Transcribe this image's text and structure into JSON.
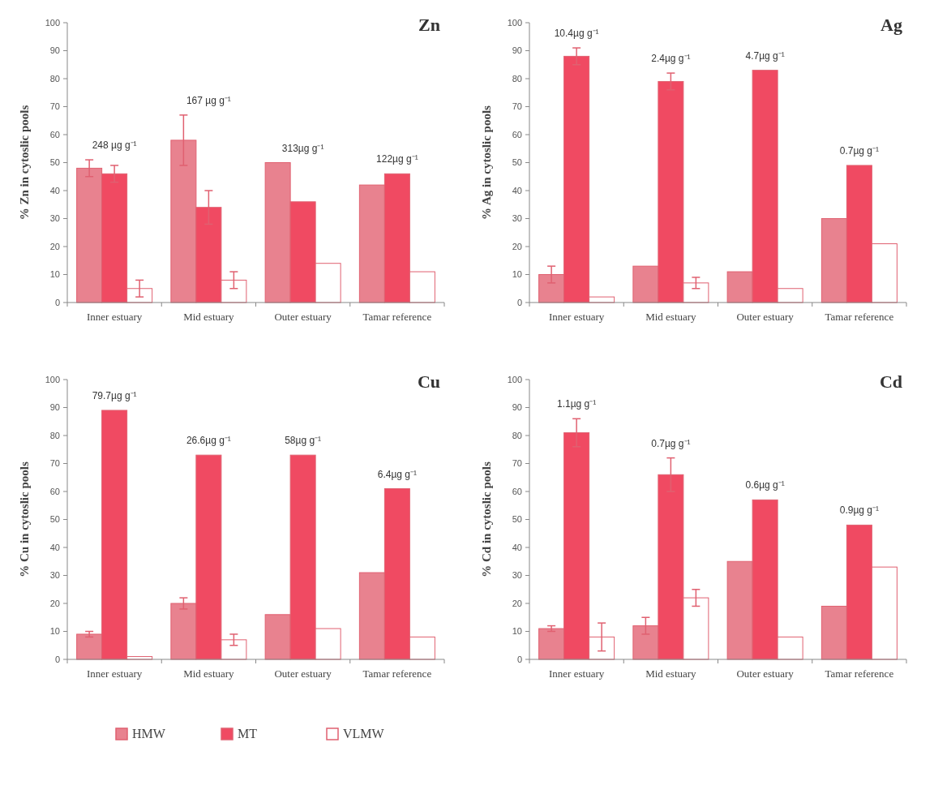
{
  "chart_data": [
    {
      "type": "bar",
      "title": "Zn",
      "ylabel": "% Zn in cytoslic pools",
      "categories": [
        "Inner estuary",
        "Mid estuary",
        "Outer estuary",
        "Tamar reference"
      ],
      "ylim": [
        0,
        100
      ],
      "yticks": [
        0,
        10,
        20,
        30,
        40,
        50,
        60,
        70,
        80,
        90,
        100
      ],
      "legend": false,
      "series": [
        {
          "color": "#e8828f",
          "values": [
            48,
            58,
            50,
            42
          ],
          "errors": [
            3,
            9,
            null,
            null
          ]
        },
        {
          "color": "#f04a62",
          "values": [
            46,
            34,
            36,
            46
          ],
          "errors": [
            3,
            6,
            null,
            null
          ]
        },
        {
          "color": "#ffffff",
          "values": [
            5,
            8,
            14,
            11
          ],
          "errors": [
            3,
            3,
            null,
            null
          ]
        }
      ],
      "annotations": [
        "248 µg g⁻¹",
        "167 µg g⁻¹",
        "313µg g⁻¹",
        "122µg g⁻¹"
      ]
    },
    {
      "type": "bar",
      "title": "Ag",
      "ylabel": "% Ag in cytoslic pools",
      "categories": [
        "Inner estuary",
        "Mid estuary",
        "Outer estuary",
        "Tamar reference"
      ],
      "ylim": [
        0,
        100
      ],
      "yticks": [
        0,
        10,
        20,
        30,
        40,
        50,
        60,
        70,
        80,
        90,
        100
      ],
      "legend": false,
      "series": [
        {
          "color": "#e8828f",
          "values": [
            10,
            13,
            11,
            30
          ],
          "errors": [
            3,
            null,
            null,
            null
          ]
        },
        {
          "color": "#f04a62",
          "values": [
            88,
            79,
            83,
            49
          ],
          "errors": [
            3,
            3,
            null,
            null
          ]
        },
        {
          "color": "#ffffff",
          "values": [
            2,
            7,
            5,
            21
          ],
          "errors": [
            null,
            2,
            null,
            null
          ]
        }
      ],
      "annotations": [
        "10.4µg g⁻¹",
        "2.4µg g⁻¹",
        "4.7µg g⁻¹",
        "0.7µg g⁻¹"
      ]
    },
    {
      "type": "bar",
      "title": "Cu",
      "ylabel": "% Cu in cytoslic pools",
      "categories": [
        "Inner estuary",
        "Mid estuary",
        "Outer estuary",
        "Tamar reference"
      ],
      "ylim": [
        0,
        100
      ],
      "yticks": [
        0,
        10,
        20,
        30,
        40,
        50,
        60,
        70,
        80,
        90,
        100
      ],
      "legend": "bottom",
      "series": [
        {
          "name": "HMW",
          "color": "#e8828f",
          "values": [
            9,
            20,
            16,
            31
          ],
          "errors": [
            1,
            2,
            null,
            null
          ]
        },
        {
          "name": "MT",
          "color": "#f04a62",
          "values": [
            89,
            73,
            73,
            61
          ],
          "errors": [
            null,
            null,
            null,
            null
          ]
        },
        {
          "name": "VLMW",
          "color": "#ffffff",
          "values": [
            1,
            7,
            11,
            8
          ],
          "errors": [
            null,
            2,
            null,
            null
          ]
        }
      ],
      "annotations": [
        "79.7µg g⁻¹",
        "26.6µg g⁻¹",
        "58µg g⁻¹",
        "6.4µg g⁻¹"
      ]
    },
    {
      "type": "bar",
      "title": "Cd",
      "ylabel": "% Cd in cytoslic pools",
      "categories": [
        "Inner estuary",
        "Mid estuary",
        "Outer estuary",
        "Tamar reference"
      ],
      "ylim": [
        0,
        100
      ],
      "yticks": [
        0,
        10,
        20,
        30,
        40,
        50,
        60,
        70,
        80,
        90,
        100
      ],
      "legend": false,
      "series": [
        {
          "color": "#e8828f",
          "values": [
            11,
            12,
            35,
            19
          ],
          "errors": [
            1,
            3,
            null,
            null
          ]
        },
        {
          "color": "#f04a62",
          "values": [
            81,
            66,
            57,
            48
          ],
          "errors": [
            5,
            6,
            null,
            null
          ]
        },
        {
          "color": "#ffffff",
          "values": [
            8,
            22,
            8,
            33
          ],
          "errors": [
            5,
            3,
            null,
            null
          ]
        }
      ],
      "annotations": [
        "1.1µg g⁻¹",
        "0.7µg g⁻¹",
        "0.6µg g⁻¹",
        "0.9µg g⁻¹"
      ]
    }
  ]
}
